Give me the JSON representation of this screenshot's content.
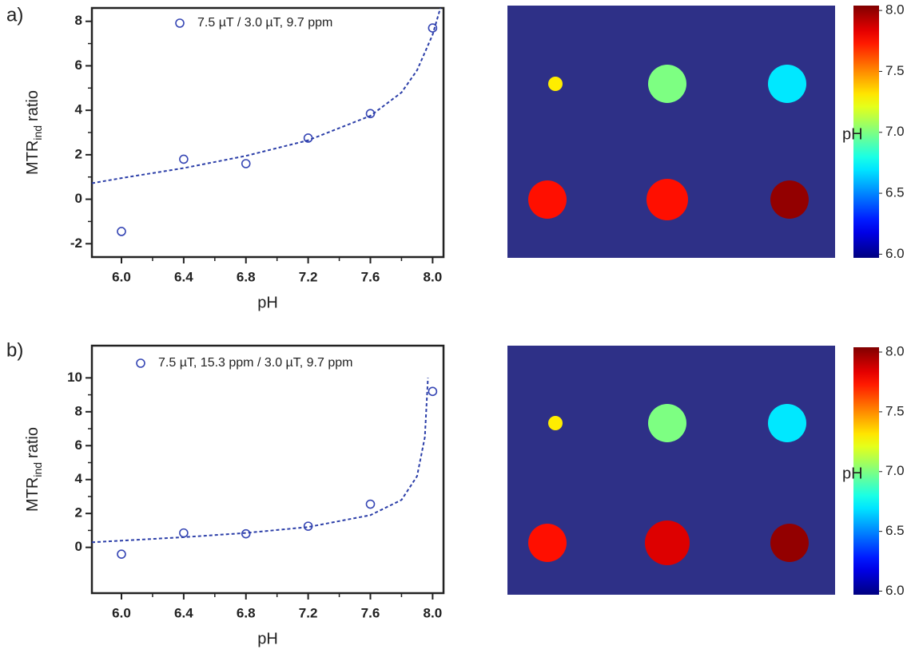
{
  "chart_data": [
    {
      "type": "scatter",
      "panel_label": "a)",
      "xlabel": "pH",
      "ylabel": [
        "MTR",
        "ind",
        "ratio"
      ],
      "xlim": [
        5.81,
        8.07
      ],
      "ylim": [
        -2.6,
        8.6
      ],
      "xticks": [
        {
          "value": 6,
          "label": "6.0"
        },
        6.4,
        6.8,
        7.2,
        7.6,
        {
          "value": 8,
          "label": "8.0"
        }
      ],
      "yticks": [
        -2,
        0,
        2,
        4,
        6,
        8
      ],
      "series": [
        {
          "name": "7.5 µT / 3.0 µT, 9.7 ppm",
          "color": "#3646b4",
          "x": [
            6.0,
            6.4,
            6.8,
            7.2,
            7.6,
            8.0
          ],
          "values": [
            -1.45,
            1.8,
            1.6,
            2.75,
            3.85,
            7.7
          ]
        },
        {
          "color": "#2b3ea8",
          "style": "dashed",
          "x": [
            5.81,
            6.0,
            6.4,
            6.8,
            7.2,
            7.6,
            7.8,
            7.9,
            8.0,
            8.05
          ],
          "values": [
            0.72,
            0.95,
            1.4,
            1.95,
            2.65,
            3.75,
            4.8,
            5.8,
            7.4,
            8.6
          ]
        }
      ]
    },
    {
      "type": "heatmap",
      "colormap": "jet",
      "background": "#2e3087",
      "values": [
        [
          7.3,
          7.0,
          6.7
        ],
        [
          7.75,
          7.75,
          8.0
        ]
      ],
      "clim": [
        5.97,
        8.04
      ],
      "colorbar_label": "pH",
      "colorbar_ticks": [
        {
          "value": 6,
          "label": "6.0"
        },
        6.5,
        {
          "value": 7,
          "label": "7.0"
        },
        7.5,
        {
          "value": 8,
          "label": "8.0"
        }
      ]
    },
    {
      "type": "scatter",
      "panel_label": "b)",
      "xlabel": "pH",
      "ylabel": [
        "MTR",
        "ind",
        "ratio"
      ],
      "xlim": [
        5.81,
        8.07
      ],
      "ylim": [
        -2.7,
        11.9
      ],
      "xticks": [
        {
          "value": 6,
          "label": "6.0"
        },
        6.4,
        6.8,
        7.2,
        7.6,
        {
          "value": 8,
          "label": "8.0"
        }
      ],
      "yticks": [
        0,
        2,
        4,
        6,
        8,
        10
      ],
      "series": [
        {
          "name": "7.5 µT, 15.3 ppm / 3.0 µT, 9.7 ppm",
          "color": "#3646b4",
          "x": [
            6.0,
            6.4,
            6.8,
            7.2,
            7.6,
            8.0
          ],
          "values": [
            -0.4,
            0.85,
            0.8,
            1.25,
            2.55,
            9.2
          ]
        },
        {
          "color": "#2b3ea8",
          "style": "dashed",
          "x": [
            5.81,
            6.4,
            6.8,
            7.2,
            7.6,
            7.8,
            7.9,
            7.95,
            7.97
          ],
          "values": [
            0.3,
            0.6,
            0.85,
            1.2,
            1.9,
            2.8,
            4.2,
            6.5,
            10
          ]
        }
      ]
    },
    {
      "type": "heatmap",
      "colormap": "jet",
      "background": "#2e3087",
      "values": [
        [
          7.3,
          7.0,
          6.7
        ],
        [
          7.75,
          7.85,
          8.0
        ]
      ],
      "clim": [
        5.97,
        8.04
      ],
      "colorbar_label": "pH",
      "colorbar_ticks": [
        {
          "value": 6,
          "label": "6.0"
        },
        6.5,
        {
          "value": 7,
          "label": "7.0"
        },
        7.5,
        {
          "value": 8,
          "label": "8.0"
        }
      ]
    }
  ]
}
